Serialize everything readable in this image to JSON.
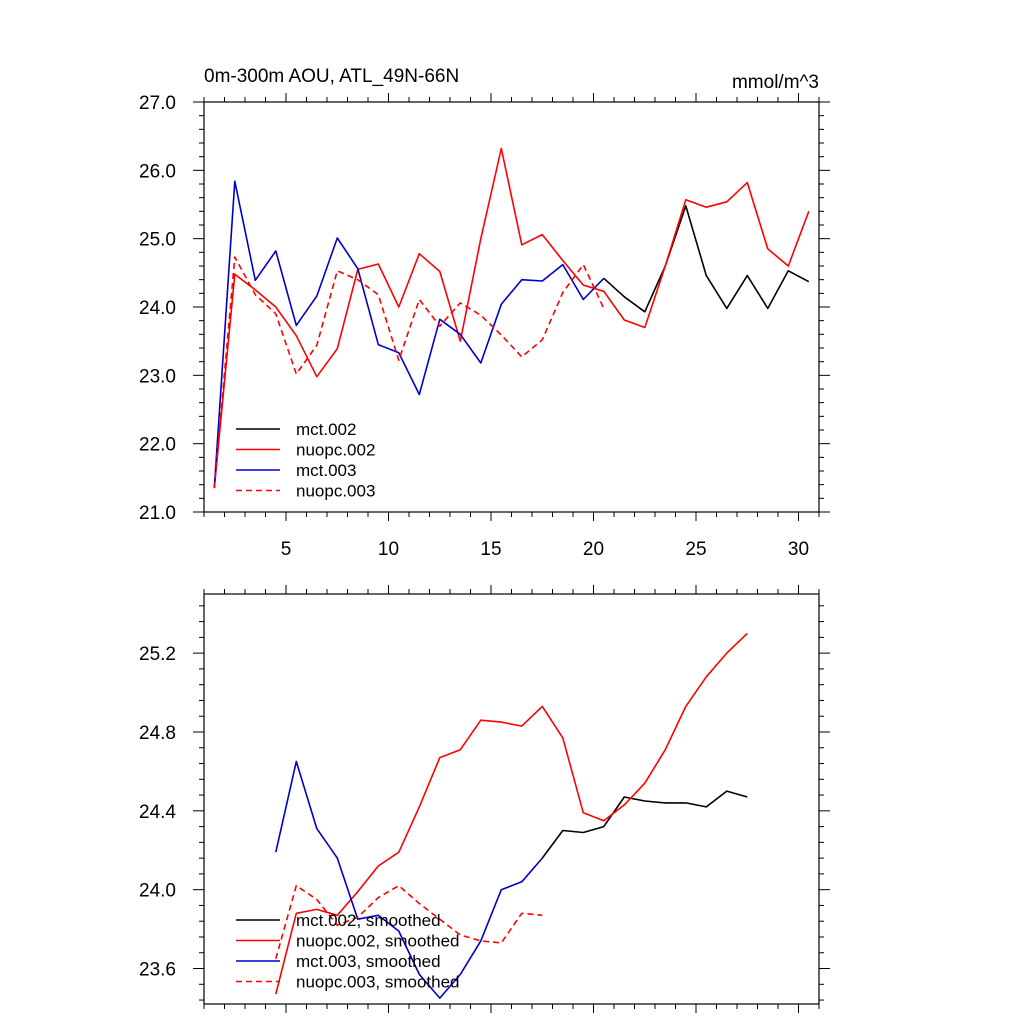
{
  "chart_data": [
    {
      "type": "line",
      "title": "0m-300m AOU, ATL_49N-66N",
      "units": "mmol/m^3",
      "xlabel": "",
      "ylabel": "",
      "xlim": [
        1,
        31
      ],
      "ylim": [
        21.0,
        27.0
      ],
      "xticks": [
        5,
        10,
        15,
        20,
        25,
        30
      ],
      "xtick_labels": [
        "5",
        "10",
        "15",
        "20",
        "25",
        "30"
      ],
      "yticks": [
        21.0,
        22.0,
        23.0,
        24.0,
        25.0,
        26.0,
        27.0
      ],
      "ytick_labels": [
        "21.0",
        "22.0",
        "23.0",
        "24.0",
        "25.0",
        "26.0",
        "27.0"
      ],
      "legend": [
        "mct.002",
        "nuopc.002",
        "mct.003",
        "nuopc.003"
      ],
      "series": [
        {
          "name": "mct.002",
          "color": "#000000",
          "dash": "solid",
          "x": [
            20.5,
            21.5,
            22.5,
            23.5,
            24.5,
            25.5,
            26.5,
            27.5,
            28.5,
            29.5,
            30.5
          ],
          "values": [
            24.42,
            24.15,
            23.93,
            24.6,
            25.48,
            24.46,
            23.98,
            24.46,
            23.98,
            24.53,
            24.37
          ]
        },
        {
          "name": "nuopc.002",
          "color": "#ff0000",
          "dash": "solid",
          "x": [
            1.5,
            2.5,
            3.5,
            4.5,
            5.5,
            6.5,
            7.5,
            8.5,
            9.5,
            10.5,
            11.5,
            12.5,
            13.5,
            14.5,
            15.5,
            16.5,
            17.5,
            18.5,
            19.5,
            20.5,
            21.5,
            22.5,
            23.5,
            24.5,
            25.5,
            26.5,
            27.5,
            28.5,
            29.5,
            30.5
          ],
          "values": [
            21.35,
            24.48,
            24.25,
            24.0,
            23.58,
            22.98,
            23.39,
            24.55,
            24.63,
            24.0,
            24.78,
            24.52,
            23.5,
            25.0,
            26.32,
            24.91,
            25.06,
            24.68,
            24.32,
            24.23,
            23.81,
            23.7,
            24.6,
            25.57,
            25.46,
            25.54,
            25.82,
            24.85,
            24.6,
            25.4
          ]
        },
        {
          "name": "mct.003",
          "color": "#0000cc",
          "dash": "solid",
          "x": [
            1.5,
            2.5,
            3.5,
            4.5,
            5.5,
            6.5,
            7.5,
            8.5,
            9.5,
            10.5,
            11.5,
            12.5,
            13.5,
            14.5,
            15.5,
            16.5,
            17.5,
            18.5,
            19.5,
            20.5
          ],
          "values": [
            21.35,
            25.84,
            24.39,
            24.82,
            23.73,
            24.16,
            25.01,
            24.56,
            23.45,
            23.33,
            22.72,
            23.82,
            23.6,
            23.18,
            24.04,
            24.4,
            24.38,
            24.62,
            24.11,
            24.42
          ]
        },
        {
          "name": "nuopc.003",
          "color": "#ff0000",
          "dash": "dashed",
          "x": [
            1.5,
            2.5,
            3.5,
            4.5,
            5.5,
            6.5,
            7.5,
            8.5,
            9.5,
            10.5,
            11.5,
            12.5,
            13.5,
            14.5,
            15.5,
            16.5,
            17.5,
            18.5,
            19.5,
            20.5
          ],
          "values": [
            21.35,
            24.73,
            24.18,
            23.9,
            23.02,
            23.44,
            24.53,
            24.4,
            24.18,
            23.22,
            24.11,
            23.72,
            24.06,
            23.88,
            23.59,
            23.27,
            23.52,
            24.21,
            24.62,
            23.98
          ]
        }
      ]
    },
    {
      "type": "line",
      "title": "",
      "xlabel": "",
      "ylabel": "",
      "xlim": [
        1,
        31
      ],
      "ylim": [
        23.42,
        25.5
      ],
      "xticks": [
        5,
        10,
        15,
        20,
        25,
        30
      ],
      "xtick_labels": [],
      "yticks": [
        23.6,
        24.0,
        24.4,
        24.8,
        25.2
      ],
      "ytick_labels": [
        "23.6",
        "24.0",
        "24.4",
        "24.8",
        "25.2"
      ],
      "legend": [
        "mct.002, smoothed",
        "nuopc.002, smoothed",
        "mct.003, smoothed",
        "nuopc.003, smoothed"
      ],
      "series": [
        {
          "name": "mct.002, smoothed",
          "color": "#000000",
          "dash": "solid",
          "x": [
            17.5,
            18.5,
            19.5,
            20.5,
            21.5,
            22.5,
            23.5,
            24.5,
            25.5,
            26.5,
            27.5
          ],
          "values": [
            24.16,
            24.3,
            24.29,
            24.32,
            24.47,
            24.45,
            24.44,
            24.44,
            24.42,
            24.5,
            24.47
          ]
        },
        {
          "name": "nuopc.002, smoothed",
          "color": "#ff0000",
          "dash": "solid",
          "x": [
            4.5,
            5.5,
            6.5,
            7.5,
            8.5,
            9.5,
            10.5,
            11.5,
            12.5,
            13.5,
            14.5,
            15.5,
            16.5,
            17.5,
            18.5,
            19.5,
            20.5,
            21.5,
            22.5,
            23.5,
            24.5,
            25.5,
            26.5,
            27.5
          ],
          "values": [
            23.47,
            23.88,
            23.9,
            23.87,
            23.99,
            24.12,
            24.19,
            24.42,
            24.67,
            24.71,
            24.86,
            24.85,
            24.83,
            24.93,
            24.77,
            24.39,
            24.35,
            24.43,
            24.54,
            24.71,
            24.93,
            25.08,
            25.2,
            25.3
          ]
        },
        {
          "name": "mct.003, smoothed",
          "color": "#0000cc",
          "dash": "solid",
          "x": [
            4.5,
            5.5,
            6.5,
            7.5,
            8.5,
            9.5,
            10.5,
            11.5,
            12.5,
            13.5,
            14.5,
            15.5,
            16.5,
            17.5
          ],
          "values": [
            24.19,
            24.65,
            24.31,
            24.16,
            23.85,
            23.87,
            23.79,
            23.57,
            23.45,
            23.57,
            23.74,
            24.0,
            24.04,
            24.16
          ]
        },
        {
          "name": "nuopc.003, smoothed",
          "color": "#ff0000",
          "dash": "dashed",
          "x": [
            4.5,
            5.5,
            6.5,
            7.5,
            8.5,
            9.5,
            10.5,
            11.5,
            12.5,
            13.5,
            14.5,
            15.5,
            16.5,
            17.5
          ],
          "values": [
            23.65,
            24.02,
            23.95,
            23.82,
            23.86,
            23.96,
            24.02,
            23.93,
            23.85,
            23.77,
            23.74,
            23.73,
            23.88,
            23.87
          ]
        }
      ]
    }
  ]
}
